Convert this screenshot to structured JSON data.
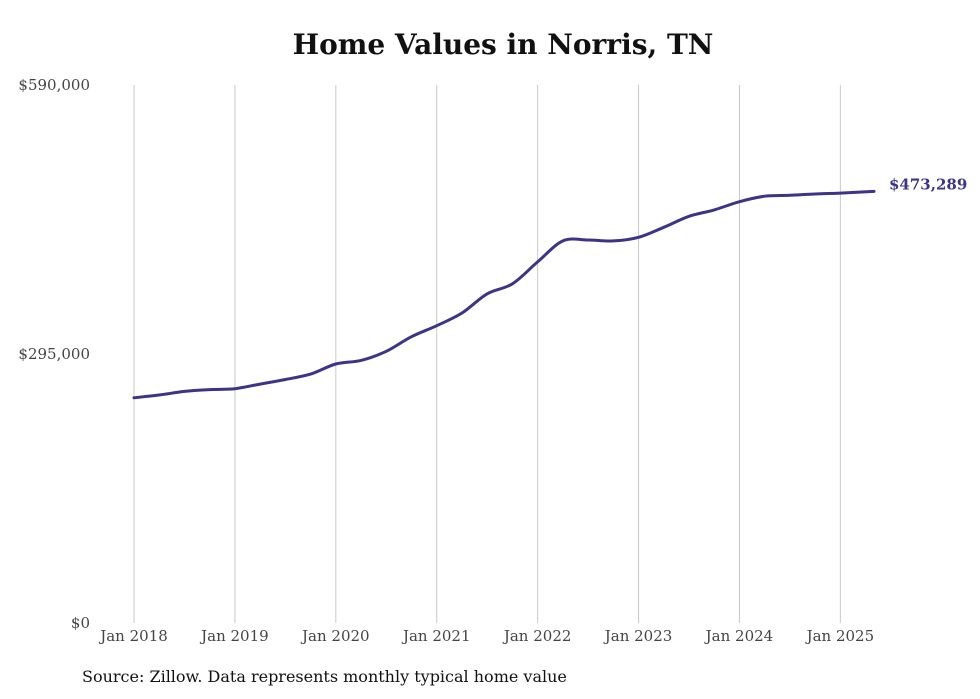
{
  "title": "Home Values in Norris, TN",
  "source": "Source: Zillow. Data represents monthly typical home value",
  "chart_data": {
    "type": "line",
    "title": "Home Values in Norris, TN",
    "xlabel": "",
    "ylabel": "",
    "y_ticks": [
      "$0",
      "$295,000",
      "$590,000"
    ],
    "y_tick_values": [
      0,
      295000,
      590000
    ],
    "ylim": [
      0,
      590000
    ],
    "x_ticks": [
      "Jan 2018",
      "Jan 2019",
      "Jan 2020",
      "Jan 2021",
      "Jan 2022",
      "Jan 2023",
      "Jan 2024",
      "Jan 2025"
    ],
    "xlim": [
      "2018-01",
      "2025-05"
    ],
    "grid": "vertical",
    "line_color": "#3b3488",
    "end_label": "$473,289",
    "series": [
      {
        "name": "",
        "x": [
          "2018-01",
          "2018-04",
          "2018-07",
          "2018-10",
          "2019-01",
          "2019-04",
          "2019-07",
          "2019-10",
          "2020-01",
          "2020-04",
          "2020-07",
          "2020-10",
          "2021-01",
          "2021-04",
          "2021-07",
          "2021-10",
          "2022-01",
          "2022-04",
          "2022-07",
          "2022-10",
          "2023-01",
          "2023-04",
          "2023-07",
          "2023-10",
          "2024-01",
          "2024-04",
          "2024-07",
          "2024-10",
          "2025-01",
          "2025-05"
        ],
        "values": [
          247000,
          250000,
          254000,
          256000,
          257000,
          262000,
          267000,
          273000,
          284000,
          288000,
          298000,
          314000,
          326000,
          340000,
          361000,
          372000,
          396000,
          419000,
          420000,
          419000,
          423000,
          434000,
          446000,
          453000,
          462000,
          468000,
          469000,
          470500,
          471500,
          473289
        ]
      }
    ]
  }
}
